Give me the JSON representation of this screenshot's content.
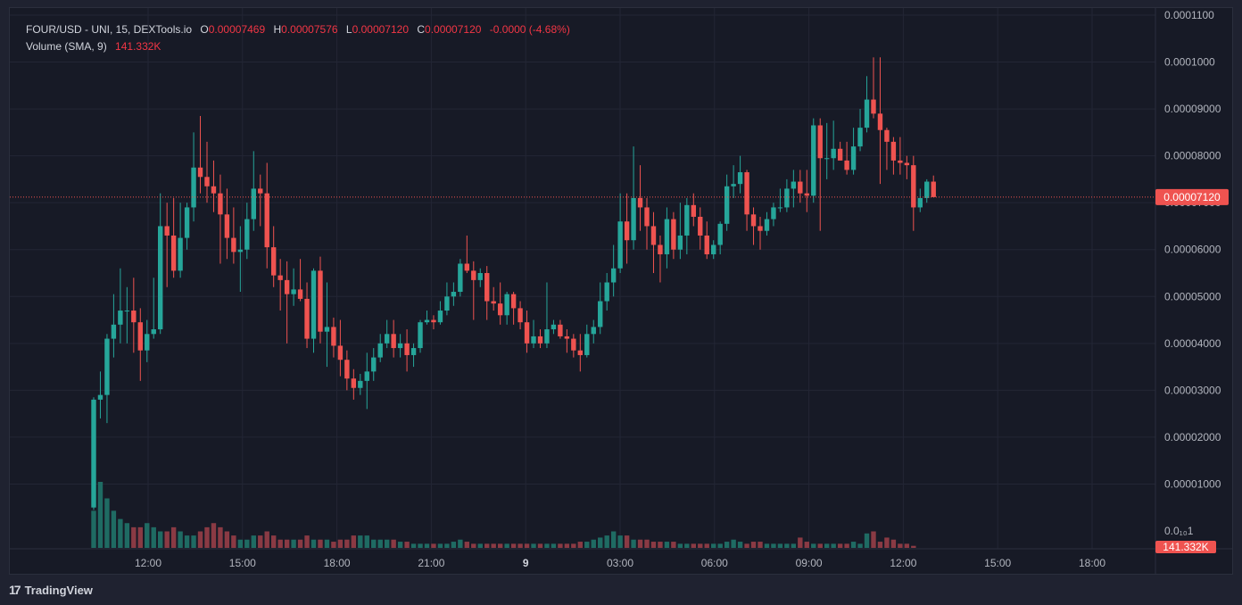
{
  "legend": {
    "symbol": "FOUR/USD - UNI, 15, DEXTools.io",
    "o_label": "O",
    "o_value": "0.00007469",
    "h_label": "H",
    "h_value": "0.00007576",
    "l_label": "L",
    "l_value": "0.00007120",
    "c_label": "C",
    "c_value": "0.00007120",
    "change": "-0.0000 (-4.68%)",
    "volume_label": "Volume (SMA, 9)",
    "volume_value": "141.332K"
  },
  "price_tag": "0.00007120",
  "volume_tag": "141.332K",
  "brand": "TradingView",
  "colors": {
    "up": "#26a69a",
    "down": "#ef5350",
    "up_vol": "#1f6b63",
    "down_vol": "#8a3a44",
    "background": "#171a26",
    "grid": "#232635"
  },
  "chart_data": {
    "type": "candlestick",
    "interval": "15",
    "y_axis": {
      "ylim": [
        0.0,
        0.00011
      ],
      "ticks": [
        "0.0001100",
        "0.0001000",
        "0.00009000",
        "0.00008000",
        "0.00007000",
        "0.00006000",
        "0.00005000",
        "0.00004000",
        "0.00003000",
        "0.00002000",
        "0.00001000",
        "0.0₁₀1"
      ]
    },
    "x_axis": {
      "ticks": [
        "12:00",
        "15:00",
        "18:00",
        "21:00",
        "9",
        "03:00",
        "06:00",
        "09:00",
        "12:00",
        "15:00",
        "18:00"
      ]
    },
    "last_price": 7.12e-05,
    "candles": [
      [
        5e-06,
        2.85e-05,
        4.5e-06,
        2.8e-05
      ],
      [
        2.8e-05,
        3.4e-05,
        2.4e-05,
        2.9e-05
      ],
      [
        2.9e-05,
        4.2e-05,
        2.3e-05,
        4.1e-05
      ],
      [
        4.1e-05,
        5.05e-05,
        3.7e-05,
        4.4e-05
      ],
      [
        4.4e-05,
        5.6e-05,
        4e-05,
        4.7e-05
      ],
      [
        4.7e-05,
        5.2e-05,
        4e-05,
        4.7e-05
      ],
      [
        4.7e-05,
        5.4e-05,
        3.8e-05,
        4.45e-05
      ],
      [
        4.45e-05,
        4.75e-05,
        3.2e-05,
        3.85e-05
      ],
      [
        3.85e-05,
        4.5e-05,
        3.6e-05,
        4.2e-05
      ],
      [
        4.2e-05,
        5.4e-05,
        4.1e-05,
        4.3e-05
      ],
      [
        4.3e-05,
        7.2e-05,
        4.2e-05,
        6.5e-05
      ],
      [
        6.5e-05,
        7e-05,
        5.2e-05,
        6.3e-05
      ],
      [
        6.3e-05,
        7.1e-05,
        5.4e-05,
        5.55e-05
      ],
      [
        5.55e-05,
        7e-05,
        5.4e-05,
        6.25e-05
      ],
      [
        6.25e-05,
        7e-05,
        6e-05,
        6.9e-05
      ],
      [
        6.9e-05,
        8.5e-05,
        6.6e-05,
        7.75e-05
      ],
      [
        7.75e-05,
        8.85e-05,
        7.2e-05,
        7.55e-05
      ],
      [
        7.55e-05,
        8.3e-05,
        7e-05,
        7.35e-05
      ],
      [
        7.35e-05,
        7.9e-05,
        6.8e-05,
        7.2e-05
      ],
      [
        7.2e-05,
        7.6e-05,
        5.7e-05,
        6.75e-05
      ],
      [
        6.75e-05,
        7.3e-05,
        5.8e-05,
        6.25e-05
      ],
      [
        6.25e-05,
        6.9e-05,
        5.7e-05,
        5.95e-05
      ],
      [
        5.95e-05,
        6.5e-05,
        5.1e-05,
        6e-05
      ],
      [
        6e-05,
        7e-05,
        5.8e-05,
        6.65e-05
      ],
      [
        6.65e-05,
        8.1e-05,
        6.4e-05,
        7.3e-05
      ],
      [
        7.3e-05,
        7.6e-05,
        6.5e-05,
        7.2e-05
      ],
      [
        7.2e-05,
        7.85e-05,
        5.6e-05,
        6.05e-05
      ],
      [
        6.05e-05,
        6.5e-05,
        5.2e-05,
        5.45e-05
      ],
      [
        5.45e-05,
        5.8e-05,
        4.7e-05,
        5.35e-05
      ],
      [
        5.35e-05,
        5.75e-05,
        4e-05,
        5.05e-05
      ],
      [
        5.05e-05,
        5.6e-05,
        4.8e-05,
        5.15e-05
      ],
      [
        5.15e-05,
        5.8e-05,
        4.9e-05,
        4.95e-05
      ],
      [
        4.95e-05,
        5.3e-05,
        3.9e-05,
        4.1e-05
      ],
      [
        4.1e-05,
        5.6e-05,
        3.8e-05,
        5.55e-05
      ],
      [
        5.55e-05,
        5.85e-05,
        4e-05,
        4.25e-05
      ],
      [
        4.25e-05,
        5.3e-05,
        3.5e-05,
        4.35e-05
      ],
      [
        4.35e-05,
        4.55e-05,
        3.7e-05,
        3.95e-05
      ],
      [
        3.95e-05,
        4.5e-05,
        3.3e-05,
        3.65e-05
      ],
      [
        3.65e-05,
        3.85e-05,
        3e-05,
        3.25e-05
      ],
      [
        3.25e-05,
        3.45e-05,
        2.8e-05,
        3.05e-05
      ],
      [
        3.05e-05,
        3.35e-05,
        2.9e-05,
        3.2e-05
      ],
      [
        3.2e-05,
        3.8e-05,
        2.6e-05,
        3.4e-05
      ],
      [
        3.4e-05,
        3.9e-05,
        3.2e-05,
        3.7e-05
      ],
      [
        3.7e-05,
        4.2e-05,
        3.6e-05,
        4e-05
      ],
      [
        4e-05,
        4.5e-05,
        3.9e-05,
        4.2e-05
      ],
      [
        4.2e-05,
        4.5e-05,
        3.7e-05,
        3.9e-05
      ],
      [
        3.9e-05,
        4.2e-05,
        3.7e-05,
        4e-05
      ],
      [
        4e-05,
        4.3e-05,
        3.4e-05,
        3.75e-05
      ],
      [
        3.75e-05,
        4e-05,
        3.5e-05,
        3.9e-05
      ],
      [
        3.9e-05,
        4.5e-05,
        3.8e-05,
        4.45e-05
      ],
      [
        4.45e-05,
        4.7e-05,
        4.4e-05,
        4.5e-05
      ],
      [
        4.5e-05,
        4.6e-05,
        4.3e-05,
        4.45e-05
      ],
      [
        4.45e-05,
        4.9e-05,
        4.4e-05,
        4.7e-05
      ],
      [
        4.7e-05,
        5.3e-05,
        4.6e-05,
        5e-05
      ],
      [
        5e-05,
        5.3e-05,
        4.8e-05,
        5.1e-05
      ],
      [
        5.1e-05,
        5.8e-05,
        5e-05,
        5.7e-05
      ],
      [
        5.7e-05,
        6.3e-05,
        5.5e-05,
        5.55e-05
      ],
      [
        5.55e-05,
        5.75e-05,
        4.5e-05,
        5.35e-05
      ],
      [
        5.35e-05,
        5.6e-05,
        5.2e-05,
        5.5e-05
      ],
      [
        5.5e-05,
        5.65e-05,
        4.5e-05,
        4.9e-05
      ],
      [
        4.9e-05,
        5.2e-05,
        4.7e-05,
        4.85e-05
      ],
      [
        4.85e-05,
        5.3e-05,
        4.4e-05,
        4.6e-05
      ],
      [
        4.6e-05,
        5.1e-05,
        4.4e-05,
        5.05e-05
      ],
      [
        5.05e-05,
        5.1e-05,
        4.4e-05,
        4.75e-05
      ],
      [
        4.75e-05,
        4.9e-05,
        4.3e-05,
        4.45e-05
      ],
      [
        4.45e-05,
        4.7e-05,
        3.8e-05,
        4e-05
      ],
      [
        4e-05,
        4.5e-05,
        3.9e-05,
        4.15e-05
      ],
      [
        4.15e-05,
        4.3e-05,
        3.9e-05,
        4e-05
      ],
      [
        4e-05,
        5.3e-05,
        3.9e-05,
        4.3e-05
      ],
      [
        4.3e-05,
        4.5e-05,
        4.2e-05,
        4.4e-05
      ],
      [
        4.4e-05,
        4.5e-05,
        4.1e-05,
        4.15e-05
      ],
      [
        4.15e-05,
        4.3e-05,
        3.8e-05,
        4.1e-05
      ],
      [
        4.1e-05,
        4.2e-05,
        3.7e-05,
        3.85e-05
      ],
      [
        3.85e-05,
        4.2e-05,
        3.4e-05,
        3.75e-05
      ],
      [
        3.75e-05,
        4.4e-05,
        3.7e-05,
        4.2e-05
      ],
      [
        4.2e-05,
        4.5e-05,
        4e-05,
        4.35e-05
      ],
      [
        4.35e-05,
        5.3e-05,
        4.2e-05,
        4.9e-05
      ],
      [
        4.9e-05,
        5.5e-05,
        4.7e-05,
        5.3e-05
      ],
      [
        5.3e-05,
        6.1e-05,
        5e-05,
        5.6e-05
      ],
      [
        5.6e-05,
        7.2e-05,
        5.5e-05,
        6.6e-05
      ],
      [
        6.6e-05,
        7.2e-05,
        5.7e-05,
        6.2e-05
      ],
      [
        6.2e-05,
        8.2e-05,
        6e-05,
        7.1e-05
      ],
      [
        7.1e-05,
        7.8e-05,
        6.4e-05,
        6.9e-05
      ],
      [
        6.9e-05,
        7.1e-05,
        6e-05,
        6.5e-05
      ],
      [
        6.5e-05,
        6.8e-05,
        5.5e-05,
        6.1e-05
      ],
      [
        6.1e-05,
        6.3e-05,
        5.3e-05,
        5.9e-05
      ],
      [
        5.9e-05,
        6.9e-05,
        5.6e-05,
        6.65e-05
      ],
      [
        6.65e-05,
        6.8e-05,
        5.8e-05,
        6e-05
      ],
      [
        6e-05,
        7e-05,
        5.8e-05,
        6.3e-05
      ],
      [
        6.3e-05,
        7.1e-05,
        5.9e-05,
        6.95e-05
      ],
      [
        6.95e-05,
        7.2e-05,
        6.5e-05,
        6.7e-05
      ],
      [
        6.7e-05,
        6.9e-05,
        6e-05,
        6.3e-05
      ],
      [
        6.3e-05,
        6.6e-05,
        5.8e-05,
        5.9e-05
      ],
      [
        5.9e-05,
        6.2e-05,
        5.8e-05,
        6.1e-05
      ],
      [
        6.1e-05,
        6.6e-05,
        5.9e-05,
        6.55e-05
      ],
      [
        6.55e-05,
        7.6e-05,
        6.4e-05,
        7.35e-05
      ],
      [
        7.35e-05,
        7.8e-05,
        7.1e-05,
        7.4e-05
      ],
      [
        7.4e-05,
        8e-05,
        7.2e-05,
        7.65e-05
      ],
      [
        7.65e-05,
        7.7e-05,
        6.4e-05,
        6.75e-05
      ],
      [
        6.75e-05,
        6.9e-05,
        6.1e-05,
        6.5e-05
      ],
      [
        6.5e-05,
        6.7e-05,
        6e-05,
        6.4e-05
      ],
      [
        6.4e-05,
        6.8e-05,
        6.3e-05,
        6.65e-05
      ],
      [
        6.65e-05,
        7e-05,
        6.5e-05,
        6.9e-05
      ],
      [
        6.9e-05,
        7.3e-05,
        6.8e-05,
        6.9e-05
      ],
      [
        6.9e-05,
        7.5e-05,
        6.8e-05,
        7.3e-05
      ],
      [
        7.3e-05,
        7.7e-05,
        6.9e-05,
        7.45e-05
      ],
      [
        7.45e-05,
        7.7e-05,
        7e-05,
        7.2e-05
      ],
      [
        7.2e-05,
        7.7e-05,
        6.8e-05,
        7.15e-05
      ],
      [
        7.15e-05,
        8.8e-05,
        7e-05,
        8.65e-05
      ],
      [
        8.65e-05,
        8.8e-05,
        6.4e-05,
        7.95e-05
      ],
      [
        7.95e-05,
        8.7e-05,
        7.5e-05,
        7.95e-05
      ],
      [
        7.95e-05,
        8.75e-05,
        7.7e-05,
        8.15e-05
      ],
      [
        8.15e-05,
        8.3e-05,
        7.9e-05,
        7.9e-05
      ],
      [
        7.9e-05,
        8.3e-05,
        7.6e-05,
        7.7e-05
      ],
      [
        7.7e-05,
        8.6e-05,
        7.6e-05,
        8.2e-05
      ],
      [
        8.2e-05,
        9e-05,
        8.1e-05,
        8.6e-05
      ],
      [
        8.6e-05,
        9.7e-05,
        8.5e-05,
        9.2e-05
      ],
      [
        9.2e-05,
        0.000101,
        8.8e-05,
        8.9e-05
      ],
      [
        8.9e-05,
        0.000101,
        7.4e-05,
        8.55e-05
      ],
      [
        8.55e-05,
        8.6e-05,
        7.7e-05,
        8.3e-05
      ],
      [
        8.3e-05,
        8.4e-05,
        7.6e-05,
        7.9e-05
      ],
      [
        7.9e-05,
        8.4e-05,
        7.6e-05,
        7.85e-05
      ],
      [
        7.85e-05,
        8e-05,
        7.5e-05,
        7.8e-05
      ],
      [
        7.8e-05,
        8e-05,
        6.4e-05,
        6.9e-05
      ],
      [
        6.9e-05,
        7.3e-05,
        6.8e-05,
        7.1e-05
      ],
      [
        7.1e-05,
        7.5e-05,
        7e-05,
        7.45e-05
      ],
      [
        7.45e-05,
        7.58e-05,
        7.12e-05,
        7.12e-05
      ]
    ],
    "volume": [
      9,
      16,
      12,
      9,
      7,
      6,
      5,
      5,
      6,
      5,
      4,
      4,
      5,
      4,
      3,
      3,
      4,
      5,
      6,
      5,
      4,
      3,
      2,
      2,
      3,
      3,
      4,
      3,
      2,
      2,
      2,
      2,
      3,
      2,
      2,
      2,
      1.5,
      2,
      2,
      3,
      3,
      3,
      2,
      2,
      2,
      2,
      1.5,
      1.5,
      1,
      1,
      1,
      1,
      1,
      1,
      1.5,
      2,
      1.5,
      1,
      1,
      1,
      1,
      1,
      1,
      1,
      1,
      1,
      1,
      1,
      1,
      1,
      1,
      1,
      1,
      1.5,
      1.5,
      2,
      2.5,
      3,
      4,
      3,
      3,
      2,
      2,
      2,
      1.5,
      1.5,
      1.5,
      1.5,
      1,
      1,
      1,
      1,
      1,
      1,
      1,
      1.5,
      2,
      1.5,
      1,
      1.5,
      1.5,
      1,
      1,
      1,
      1,
      1,
      2.5,
      1.5,
      1,
      1,
      1,
      1,
      1,
      1,
      1.5,
      1,
      3.5,
      4,
      1.5,
      2.5,
      2,
      1,
      1,
      0.5
    ]
  }
}
